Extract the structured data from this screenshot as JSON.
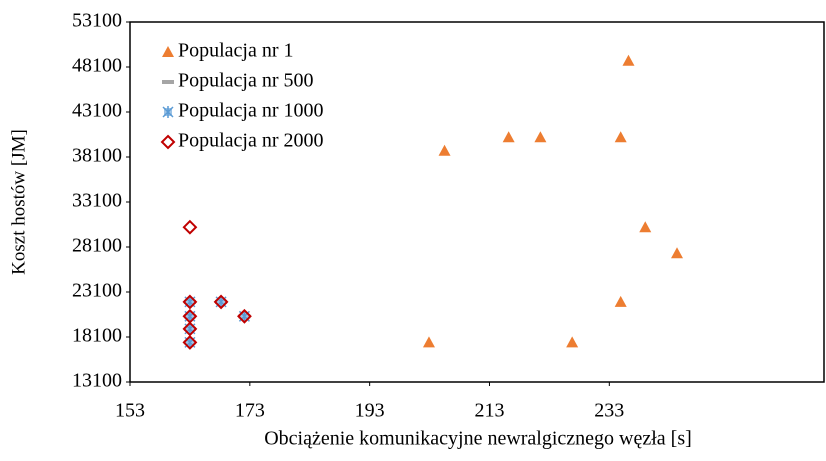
{
  "chart_data": {
    "type": "scatter",
    "x_label": "Obciążenie komunikacyjne newralgicznego węzła [s]",
    "y_label": "Koszt hostów [JM]",
    "xlim": [
      153,
      269
    ],
    "xticks": [
      153,
      173,
      193,
      213,
      233
    ],
    "ylim": [
      13100,
      53100
    ],
    "yticks": [
      13100,
      18100,
      23100,
      28100,
      33100,
      38100,
      43100,
      48100,
      53100
    ],
    "grid": false,
    "legend": "top-left",
    "series": [
      {
        "name": "Populacja nr 1",
        "color": "#ed7d31",
        "marker": "triangle",
        "x": [
          202.9,
          205.5,
          216.2,
          221.5,
          226.8,
          234.9,
          234.9,
          236.2,
          239,
          244.3
        ],
        "values": [
          17500,
          38800,
          40300,
          40300,
          17500,
          40300,
          22000,
          48800,
          30300,
          27400
        ]
      },
      {
        "name": "Populacja nr 500",
        "color": "#a5a5a5",
        "marker": "dash",
        "x": [
          163,
          163,
          163,
          163,
          168.2,
          172.1
        ],
        "values": [
          22000,
          20400,
          19000,
          17500,
          22000,
          20400
        ]
      },
      {
        "name": "Populacja nr 1000",
        "color": "#5b9bd5",
        "marker": "asterisk",
        "x": [
          163,
          163,
          163,
          163,
          168.2,
          172.1
        ],
        "values": [
          22000,
          20400,
          19000,
          17500,
          22000,
          20400
        ]
      },
      {
        "name": "Populacja nr 2000",
        "color": "#c00000",
        "marker": "diamond",
        "x": [
          163,
          163,
          163,
          163,
          163,
          168.2,
          172.1
        ],
        "values": [
          30300,
          22000,
          20400,
          19000,
          17500,
          22000,
          20400
        ]
      }
    ]
  }
}
